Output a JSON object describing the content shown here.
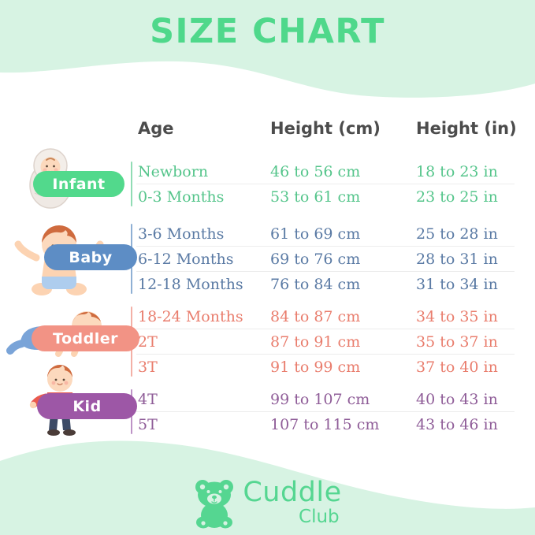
{
  "page": {
    "title": "SIZE CHART",
    "colors": {
      "background_mint": "#d7f3e3",
      "card_white": "#ffffff",
      "title_green": "#4fd88b",
      "header_text": "#4c4c4c",
      "brand_green": "#55d691",
      "divider_gray": "#ececec"
    }
  },
  "table": {
    "headers": [
      "Age",
      "Height (cm)",
      "Height (in)"
    ],
    "groups": [
      {
        "label": "Infant",
        "illustration": "swaddled-baby-icon",
        "pill_color": "#52d98c",
        "text_color": "#55c58b",
        "line_color": "#90dcb4",
        "rows": [
          {
            "age": "Newborn",
            "height_cm": "46 to 56 cm",
            "height_in": "18 to 23 in"
          },
          {
            "age": "0-3 Months",
            "height_cm": "53 to 61 cm",
            "height_in": "23 to 25 in"
          }
        ]
      },
      {
        "label": "Baby",
        "illustration": "sitting-baby-icon",
        "pill_color": "#5d8dc5",
        "text_color": "#5a7aa4",
        "line_color": "#8fb0d4",
        "rows": [
          {
            "age": "3-6 Months",
            "height_cm": "61 to 69 cm",
            "height_in": "25 to 28 in"
          },
          {
            "age": "6-12 Months",
            "height_cm": "69 to 76 cm",
            "height_in": "28 to 31 in"
          },
          {
            "age": "12-18 Months",
            "height_cm": "76 to 84 cm",
            "height_in": "31 to 34 in"
          }
        ]
      },
      {
        "label": "Toddler",
        "illustration": "crawling-toddler-icon",
        "pill_color": "#f29385",
        "text_color": "#e97d6d",
        "line_color": "#f3b0a6",
        "rows": [
          {
            "age": "18-24 Months",
            "height_cm": "84 to 87 cm",
            "height_in": "34 to 35 in"
          },
          {
            "age": "2T",
            "height_cm": "87 to 91 cm",
            "height_in": "35 to 37 in"
          },
          {
            "age": "3T",
            "height_cm": "91 to 99 cm",
            "height_in": "37 to 40 in"
          }
        ]
      },
      {
        "label": "Kid",
        "illustration": "standing-kid-icon",
        "pill_color": "#9d57a6",
        "text_color": "#8f5d98",
        "line_color": "#bd93c6",
        "rows": [
          {
            "age": "4T",
            "height_cm": "99 to 107 cm",
            "height_in": "40 to 43 in"
          },
          {
            "age": "5T",
            "height_cm": "107 to 115 cm",
            "height_in": "43 to 46 in"
          }
        ]
      }
    ]
  },
  "footer": {
    "brand_line1": "Cuddle",
    "brand_line2": "Club"
  },
  "chart_data": {
    "type": "table",
    "title": "SIZE CHART",
    "columns": [
      "Age",
      "Height (cm)",
      "Height (in)"
    ],
    "groups": [
      {
        "category": "Infant",
        "rows": [
          [
            "Newborn",
            "46 to 56 cm",
            "18 to 23 in"
          ],
          [
            "0-3 Months",
            "53 to 61 cm",
            "23 to 25 in"
          ]
        ]
      },
      {
        "category": "Baby",
        "rows": [
          [
            "3-6 Months",
            "61 to 69 cm",
            "25 to 28 in"
          ],
          [
            "6-12 Months",
            "69 to 76 cm",
            "28 to 31 in"
          ],
          [
            "12-18 Months",
            "76 to 84 cm",
            "31 to 34 in"
          ]
        ]
      },
      {
        "category": "Toddler",
        "rows": [
          [
            "18-24 Months",
            "84 to 87 cm",
            "34 to 35 in"
          ],
          [
            "2T",
            "87 to 91 cm",
            "35 to 37 in"
          ],
          [
            "3T",
            "91 to 99 cm",
            "37 to 40 in"
          ]
        ]
      },
      {
        "category": "Kid",
        "rows": [
          [
            "4T",
            "99 to 107 cm",
            "40 to 43 in"
          ],
          [
            "5T",
            "107 to 115 cm",
            "43 to 46 in"
          ]
        ]
      }
    ]
  }
}
